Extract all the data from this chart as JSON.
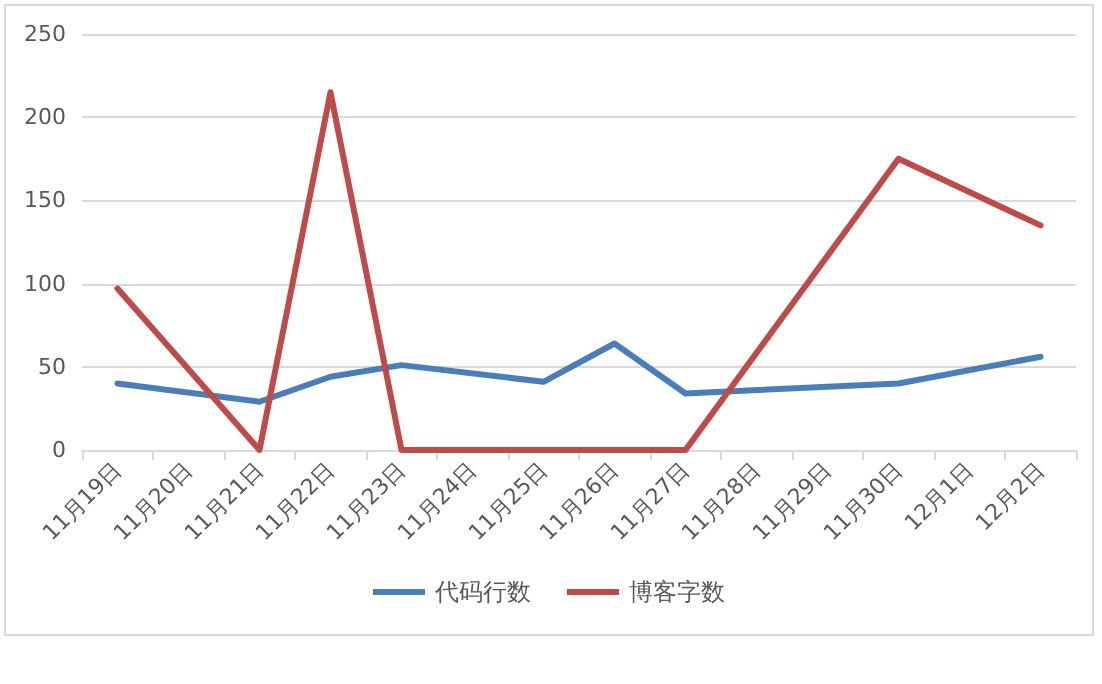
{
  "chart_data": {
    "type": "line",
    "categories": [
      "11月19日",
      "11月20日",
      "11月21日",
      "11月22日",
      "11月23日",
      "11月24日",
      "11月25日",
      "11月26日",
      "11月27日",
      "11月28日",
      "11月29日",
      "11月30日",
      "12月1日",
      "12月2日"
    ],
    "series": [
      {
        "name": "代码行数",
        "color": "#4a7ebb",
        "values": [
          40,
          null,
          29,
          44,
          51,
          null,
          41,
          64,
          34,
          null,
          null,
          40,
          null,
          56
        ]
      },
      {
        "name": "博客字数",
        "color": "#be4b48",
        "values": [
          97,
          null,
          0,
          215,
          0,
          null,
          null,
          null,
          0,
          null,
          null,
          175,
          null,
          135
        ]
      }
    ],
    "ylim": [
      0,
      250
    ],
    "yticks": [
      0,
      50,
      100,
      150,
      200,
      250
    ],
    "grid": "y",
    "legend": "bottom",
    "marker": "none",
    "line_style": "solid"
  }
}
